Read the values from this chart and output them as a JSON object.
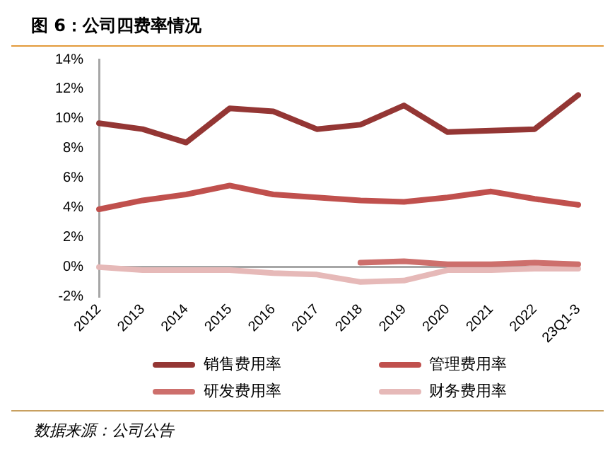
{
  "chart_data": {
    "type": "line",
    "title": "图 6：公司四费率情况",
    "categories": [
      "2012",
      "2013",
      "2014",
      "2015",
      "2016",
      "2017",
      "2018",
      "2019",
      "2020",
      "2021",
      "2022",
      "23Q1-3"
    ],
    "series": [
      {
        "name": "销售费用率",
        "color": "#943634",
        "values": [
          9.7,
          9.3,
          8.4,
          10.7,
          10.5,
          9.3,
          9.6,
          10.9,
          9.1,
          9.2,
          9.3,
          11.6
        ]
      },
      {
        "name": "管理费用率",
        "color": "#c0504d",
        "values": [
          3.9,
          4.5,
          4.9,
          5.5,
          4.9,
          4.7,
          4.5,
          4.4,
          4.7,
          5.1,
          4.6,
          4.2
        ]
      },
      {
        "name": "研发费用率",
        "color": "#cd6f6c",
        "values": [
          null,
          null,
          null,
          null,
          null,
          null,
          0.3,
          0.4,
          0.2,
          0.2,
          0.3,
          0.2
        ]
      },
      {
        "name": "财务费用率",
        "color": "#e6b9b8",
        "values": [
          0,
          -0.2,
          -0.2,
          -0.2,
          -0.4,
          -0.5,
          -1.0,
          -0.9,
          -0.2,
          -0.2,
          -0.1,
          -0.1
        ]
      }
    ],
    "ylim": [
      -2,
      14
    ],
    "yticks": [
      {
        "value": -2,
        "label": "-2%"
      },
      {
        "value": 0,
        "label": "0%"
      },
      {
        "value": 2,
        "label": "2%"
      },
      {
        "value": 4,
        "label": "4%"
      },
      {
        "value": 6,
        "label": "6%"
      },
      {
        "value": 8,
        "label": "8%"
      },
      {
        "value": 10,
        "label": "10%"
      },
      {
        "value": 12,
        "label": "12%"
      },
      {
        "value": 14,
        "label": "14%"
      }
    ],
    "grid": false,
    "legend": "bottom",
    "marker": "none",
    "line_style": "solid",
    "annotations": [
      "数据来源：公司公告"
    ]
  }
}
